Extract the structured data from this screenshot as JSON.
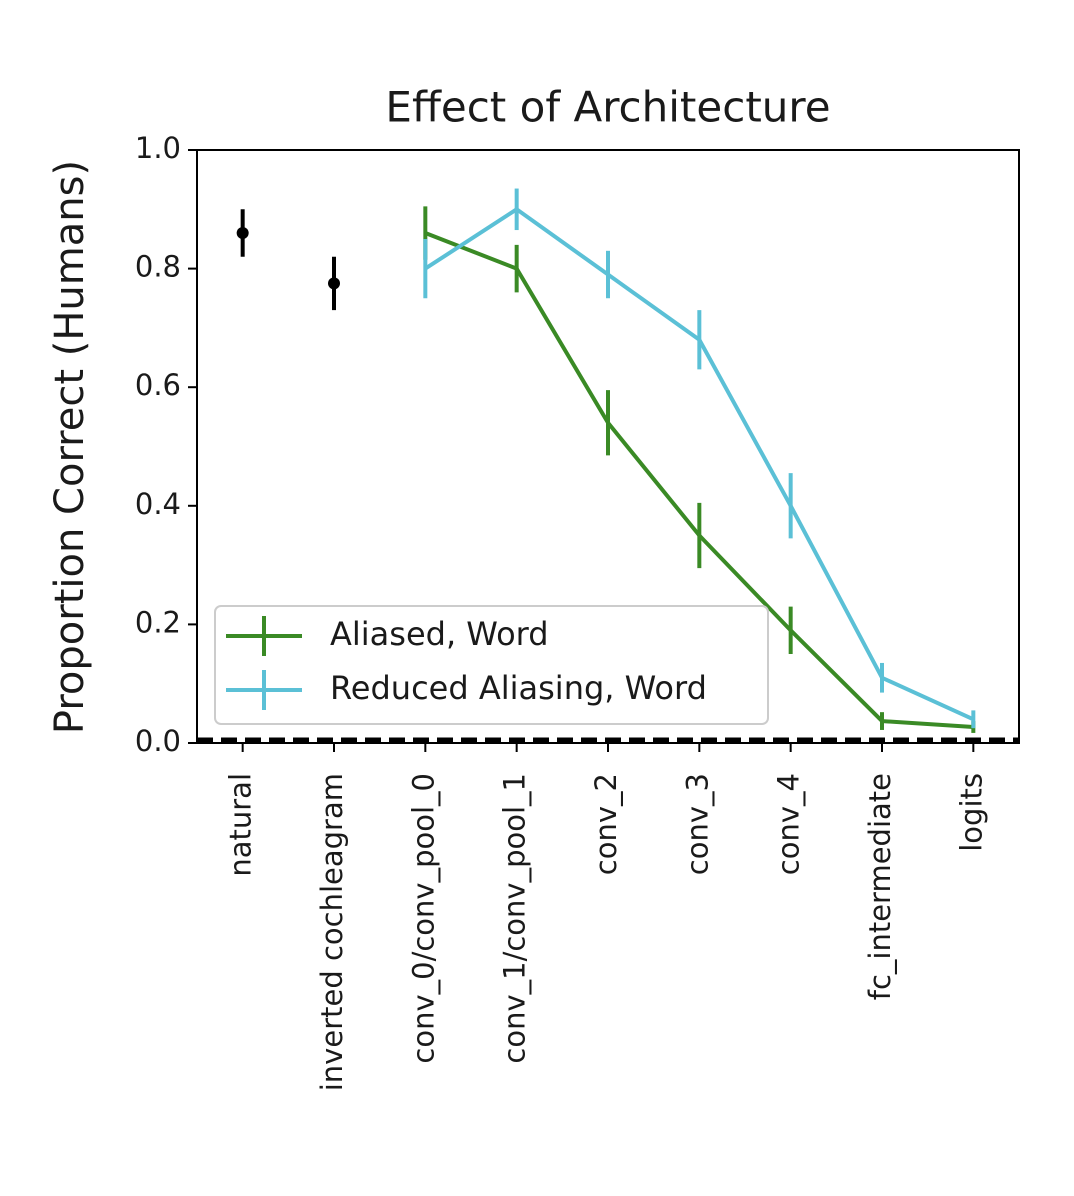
{
  "chart_data": {
    "type": "line",
    "title": "Effect of Architecture",
    "y_label": "Proportion Correct (Humans)",
    "categories": [
      "natural",
      "inverted cochleagram",
      "conv_0/conv_pool_0",
      "conv_1/conv_pool_1",
      "conv_2",
      "conv_3",
      "conv_4",
      "fc_intermediate",
      "logits"
    ],
    "series": [
      {
        "name": "Aliased, Word",
        "color": "#3a8a25",
        "values": [
          null,
          null,
          0.86,
          0.8,
          0.54,
          0.35,
          0.19,
          0.037,
          0.027
        ],
        "errors": [
          null,
          null,
          0.045,
          0.04,
          0.055,
          0.055,
          0.04,
          0.015,
          0.01
        ]
      },
      {
        "name": "Reduced Aliasing, Word",
        "color": "#5bc0d6",
        "values": [
          null,
          null,
          0.8,
          0.9,
          0.79,
          0.68,
          0.4,
          0.11,
          0.04
        ],
        "errors": [
          null,
          null,
          0.05,
          0.035,
          0.04,
          0.05,
          0.055,
          0.025,
          0.015
        ]
      }
    ],
    "human_points": {
      "color": "#000000",
      "values": [
        0.86,
        0.775,
        null,
        null,
        null,
        null,
        null,
        null,
        null
      ],
      "errors": [
        0.04,
        0.045,
        null,
        null,
        null,
        null,
        null,
        null,
        null
      ]
    },
    "reference_line": 0.005,
    "ylim": [
      0,
      1
    ],
    "yticks": [
      {
        "value": 0,
        "label": "0.0"
      },
      {
        "value": 0.2,
        "label": "0.2"
      },
      {
        "value": 0.4,
        "label": "0.4"
      },
      {
        "value": 0.6,
        "label": "0.6"
      },
      {
        "value": 0.8,
        "label": "0.8"
      },
      {
        "value": 1,
        "label": "1.0"
      }
    ],
    "legend": "lower left",
    "grid": false
  }
}
